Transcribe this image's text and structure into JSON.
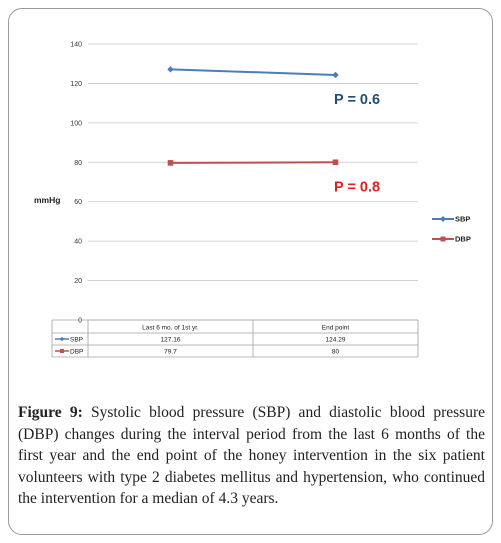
{
  "chart_data": {
    "type": "line",
    "ylabel": "mmHg",
    "ylim": [
      0,
      140
    ],
    "yticks": [
      0,
      20,
      40,
      60,
      80,
      100,
      120,
      140
    ],
    "categories": [
      "Last 6 mo. of 1st yr.",
      "End point"
    ],
    "series": [
      {
        "name": "SBP",
        "values": [
          127.16,
          124.29
        ],
        "table_values": [
          "127.16",
          "124.29"
        ],
        "color": "#4a7ebb"
      },
      {
        "name": "DBP",
        "values": [
          79.7,
          80
        ],
        "table_values": [
          "79.7",
          "80"
        ],
        "color": "#c0504d"
      }
    ],
    "annotations": [
      {
        "text": "P = 0.6",
        "series": "SBP",
        "color": "#1f4e79"
      },
      {
        "text": "P = 0.8",
        "series": "DBP",
        "color": "#e02020"
      }
    ],
    "grid": true,
    "legend": "right"
  },
  "caption": {
    "label": "Figure 9:",
    "text": "Systolic blood pressure (SBP) and diastolic blood pressure (DBP) changes during the interval period from the last 6 months of the first year and the end point of the honey intervention in the six patient volunteers with type 2 diabetes mellitus and hypertension, who continued the intervention for a median of 4.3 years."
  }
}
